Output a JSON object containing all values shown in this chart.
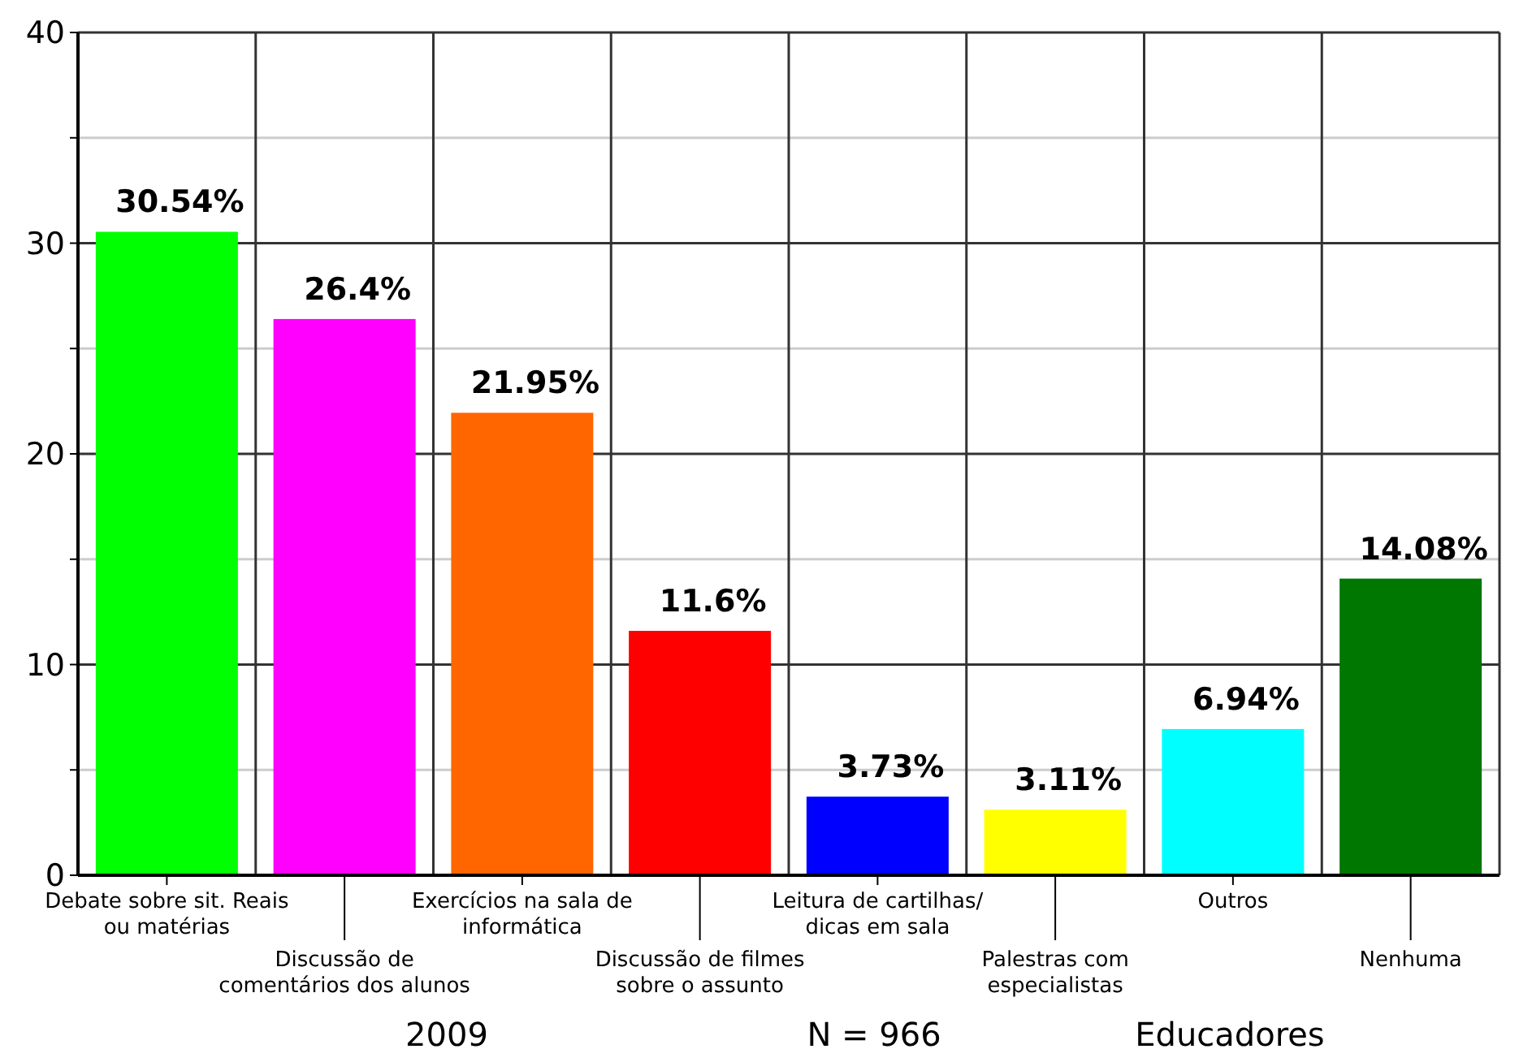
{
  "chart_data": {
    "type": "bar",
    "categories": [
      "Debate sobre sit. Reais\nou matérias",
      "Discussão de\ncomentários dos alunos",
      "Exercícios na sala de\ninformática",
      "Discussão de filmes\nsobre o assunto",
      "Leitura de cartilhas/\ndicas em sala",
      "Palestras com\nespecialistas",
      "Outros",
      "Nenhuma"
    ],
    "values": [
      30.54,
      26.4,
      21.95,
      11.6,
      3.73,
      3.11,
      6.94,
      14.08
    ],
    "value_labels": [
      "30.54%",
      "26.4%",
      "21.95%",
      "11.6%",
      "3.73%",
      "3.11%",
      "6.94%",
      "14.08%"
    ],
    "colors": [
      "#00ff00",
      "#ff00ff",
      "#ff6600",
      "#ff0000",
      "#0000ff",
      "#ffff00",
      "#00ffff",
      "#007700"
    ],
    "ylim": [
      0,
      40
    ],
    "yticks": [
      0,
      {
        "value": 5,
        "label": null
      },
      10,
      {
        "value": 15,
        "label": null
      },
      20,
      {
        "value": 25,
        "label": null
      },
      30,
      {
        "value": 35,
        "label": null
      },
      40
    ],
    "grid": true,
    "annotations": [
      "2009",
      "N = 966",
      "Educadores"
    ]
  }
}
